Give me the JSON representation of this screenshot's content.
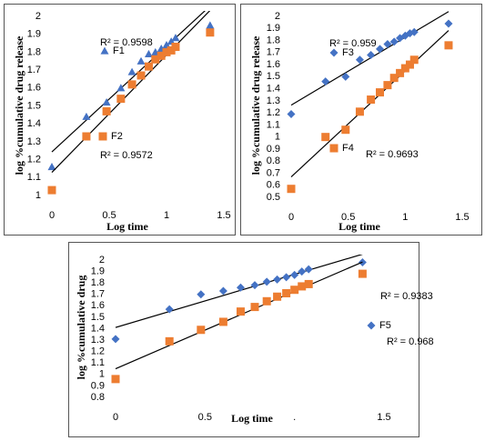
{
  "chart_data": [
    {
      "type": "scatter",
      "ylabel": "log %cumulative drug release",
      "xlabel": "Log time",
      "x": [
        0,
        0.301,
        0.477,
        0.602,
        0.699,
        0.778,
        0.845,
        0.903,
        0.954,
        1,
        1.041,
        1.079,
        1.38
      ],
      "series": [
        {
          "name": "F1",
          "color": "#4472c4",
          "marker": "triangle",
          "trendline": true,
          "values": [
            1.16,
            1.44,
            1.52,
            1.6,
            1.69,
            1.75,
            1.79,
            1.8,
            1.82,
            1.84,
            1.86,
            1.88,
            1.95
          ]
        },
        {
          "name": "F2",
          "color": "#ed7d31",
          "marker": "square",
          "trendline": true,
          "values": [
            1.03,
            1.33,
            1.47,
            1.54,
            1.62,
            1.67,
            1.72,
            1.76,
            1.78,
            1.8,
            1.81,
            1.83,
            1.91
          ]
        }
      ],
      "annotations": [
        "R² = 0.9598",
        "R² = 0.9572"
      ],
      "xlim": [
        0,
        1.5
      ],
      "xticks": [
        0,
        0.5,
        1,
        1.5
      ],
      "ylim": [
        1,
        2
      ],
      "yticks": [
        1,
        1.1,
        1.2,
        1.3,
        1.4,
        1.5,
        1.6,
        1.7,
        1.8,
        1.9,
        2
      ]
    },
    {
      "type": "scatter",
      "ylabel": "log %cumulative drug release",
      "xlabel": "Log time",
      "x": [
        0,
        0.301,
        0.477,
        0.602,
        0.699,
        0.778,
        0.845,
        0.903,
        0.954,
        1,
        1.041,
        1.079,
        1.38
      ],
      "series": [
        {
          "name": "F3",
          "color": "#4472c4",
          "marker": "diamond",
          "trendline": true,
          "values": [
            1.19,
            1.46,
            1.5,
            1.64,
            1.68,
            1.73,
            1.77,
            1.79,
            1.82,
            1.84,
            1.86,
            1.87,
            1.94
          ]
        },
        {
          "name": "F4",
          "color": "#ed7d31",
          "marker": "square",
          "trendline": true,
          "values": [
            0.57,
            1,
            1.06,
            1.21,
            1.31,
            1.37,
            1.43,
            1.49,
            1.53,
            1.57,
            1.6,
            1.64,
            1.76
          ]
        }
      ],
      "annotations": [
        "R² = 0.959",
        "R² = 0.9693"
      ],
      "xlim": [
        0,
        1.5
      ],
      "xticks": [
        0,
        0.5,
        1,
        1.5
      ],
      "ylim": [
        0.5,
        2
      ],
      "yticks": [
        0.5,
        0.6,
        0.7,
        0.8,
        0.9,
        1,
        1.1,
        1.2,
        1.3,
        1.4,
        1.5,
        1.6,
        1.7,
        1.8,
        1.9,
        2
      ]
    },
    {
      "type": "scatter",
      "ylabel": "log %cumulative drug",
      "xlabel": "Log time",
      "x": [
        0,
        0.301,
        0.477,
        0.602,
        0.699,
        0.778,
        0.845,
        0.903,
        0.954,
        1,
        1.041,
        1.079,
        1.38
      ],
      "series": [
        {
          "name": "F5",
          "color": "#4472c4",
          "marker": "diamond",
          "trendline": true,
          "values": [
            1.31,
            1.57,
            1.7,
            1.73,
            1.76,
            1.78,
            1.81,
            1.83,
            1.85,
            1.87,
            1.9,
            1.92,
            1.98
          ]
        },
        {
          "color": "#ed7d31",
          "marker": "square",
          "trendline": true,
          "values": [
            0.96,
            1.29,
            1.39,
            1.46,
            1.55,
            1.59,
            1.64,
            1.68,
            1.71,
            1.74,
            1.77,
            1.79,
            1.88
          ]
        }
      ],
      "annotations": [
        "R² = 0.9383",
        "R² = 0.968"
      ],
      "xlim": [
        0,
        1.5
      ],
      "xticks": [
        0,
        0.5,
        {
          "value": 1,
          "label": "."
        },
        1.5
      ],
      "ylim": [
        0.8,
        2
      ],
      "yticks": [
        0.8,
        0.9,
        1,
        1.1,
        1.2,
        1.3,
        1.4,
        1.5,
        1.6,
        1.7,
        1.8,
        1.9,
        2
      ]
    }
  ]
}
